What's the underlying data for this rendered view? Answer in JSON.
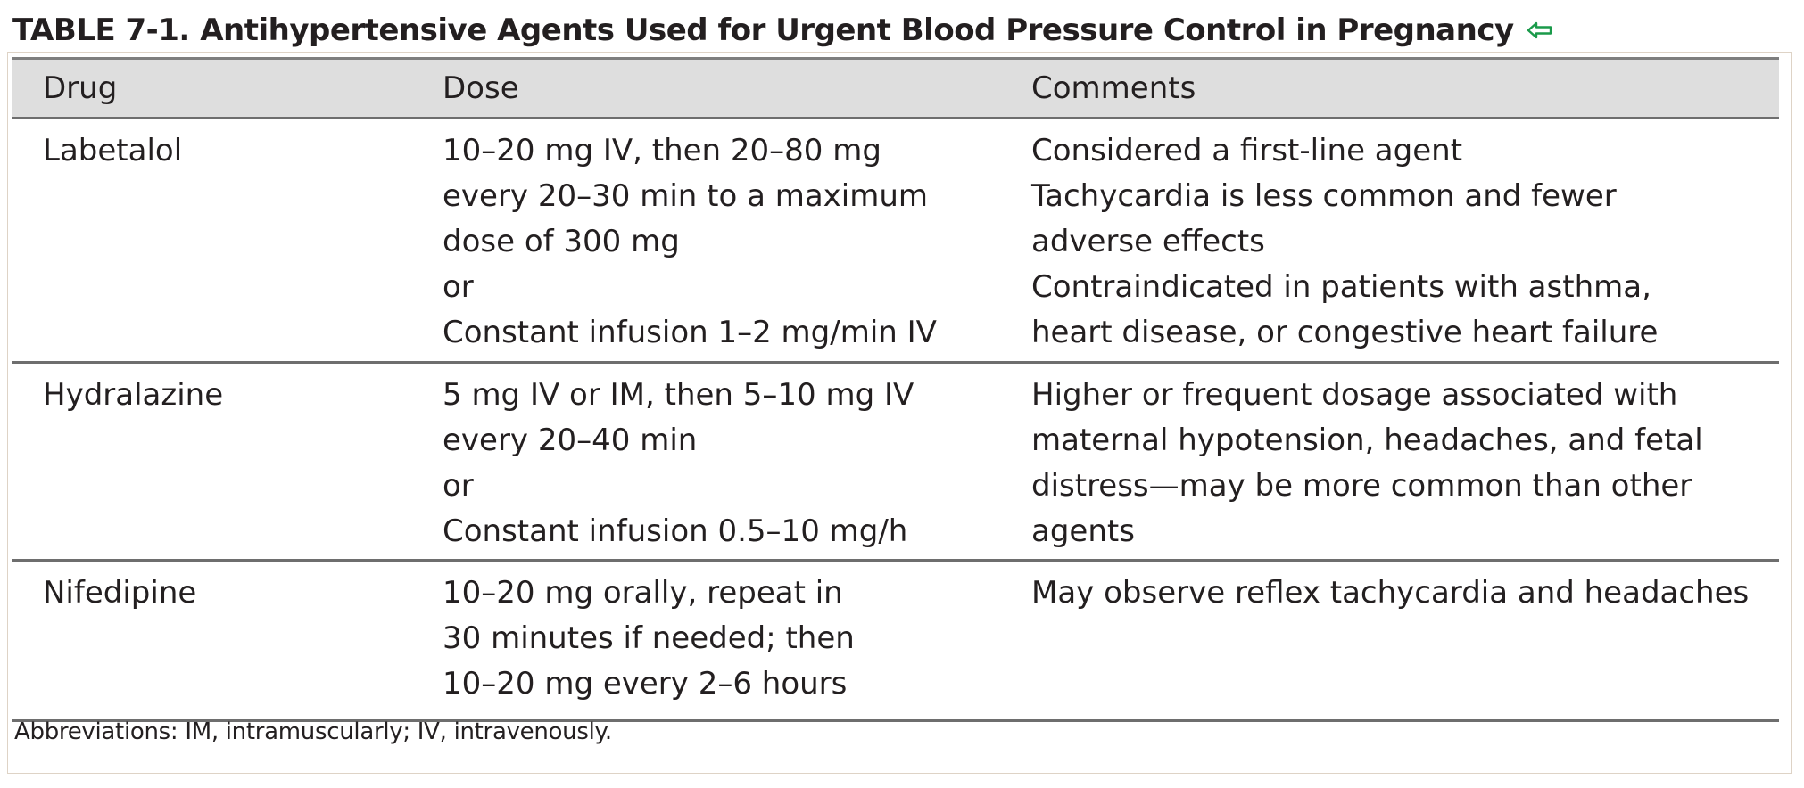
{
  "title": "TABLE 7-1. Antihypertensive Agents Used for Urgent Blood Pressure Control in Pregnancy",
  "back_icon": "return-arrow-icon",
  "accent_color": "#1a9a4a",
  "columns": [
    "Drug",
    "Dose",
    "Comments"
  ],
  "rows": [
    {
      "drug": "Labetalol",
      "dose": [
        "10–20 mg IV, then 20–80 mg",
        "every 20–30 min to a maximum",
        "dose of 300 mg",
        "or",
        "Constant infusion 1–2 mg/min IV"
      ],
      "comments": [
        "Considered a first-line agent",
        "Tachycardia is less common and fewer",
        "adverse effects",
        "Contraindicated in patients with asthma,",
        "heart disease, or congestive heart failure"
      ]
    },
    {
      "drug": "Hydralazine",
      "dose": [
        "5 mg IV or IM, then 5–10 mg IV",
        "every 20–40 min",
        "or",
        "Constant infusion 0.5–10 mg/h"
      ],
      "comments": [
        "Higher or frequent dosage associated with",
        "maternal hypotension, headaches, and fetal",
        "distress—may be more common than other",
        "agents"
      ]
    },
    {
      "drug": "Nifedipine",
      "dose": [
        "10–20 mg orally, repeat in",
        "30 minutes if needed; then",
        "10–20 mg every 2–6 hours"
      ],
      "comments": [
        "May observe reflex tachycardia and headaches"
      ]
    }
  ],
  "footnote": "Abbreviations: IM, intramuscularly; IV, intravenously."
}
